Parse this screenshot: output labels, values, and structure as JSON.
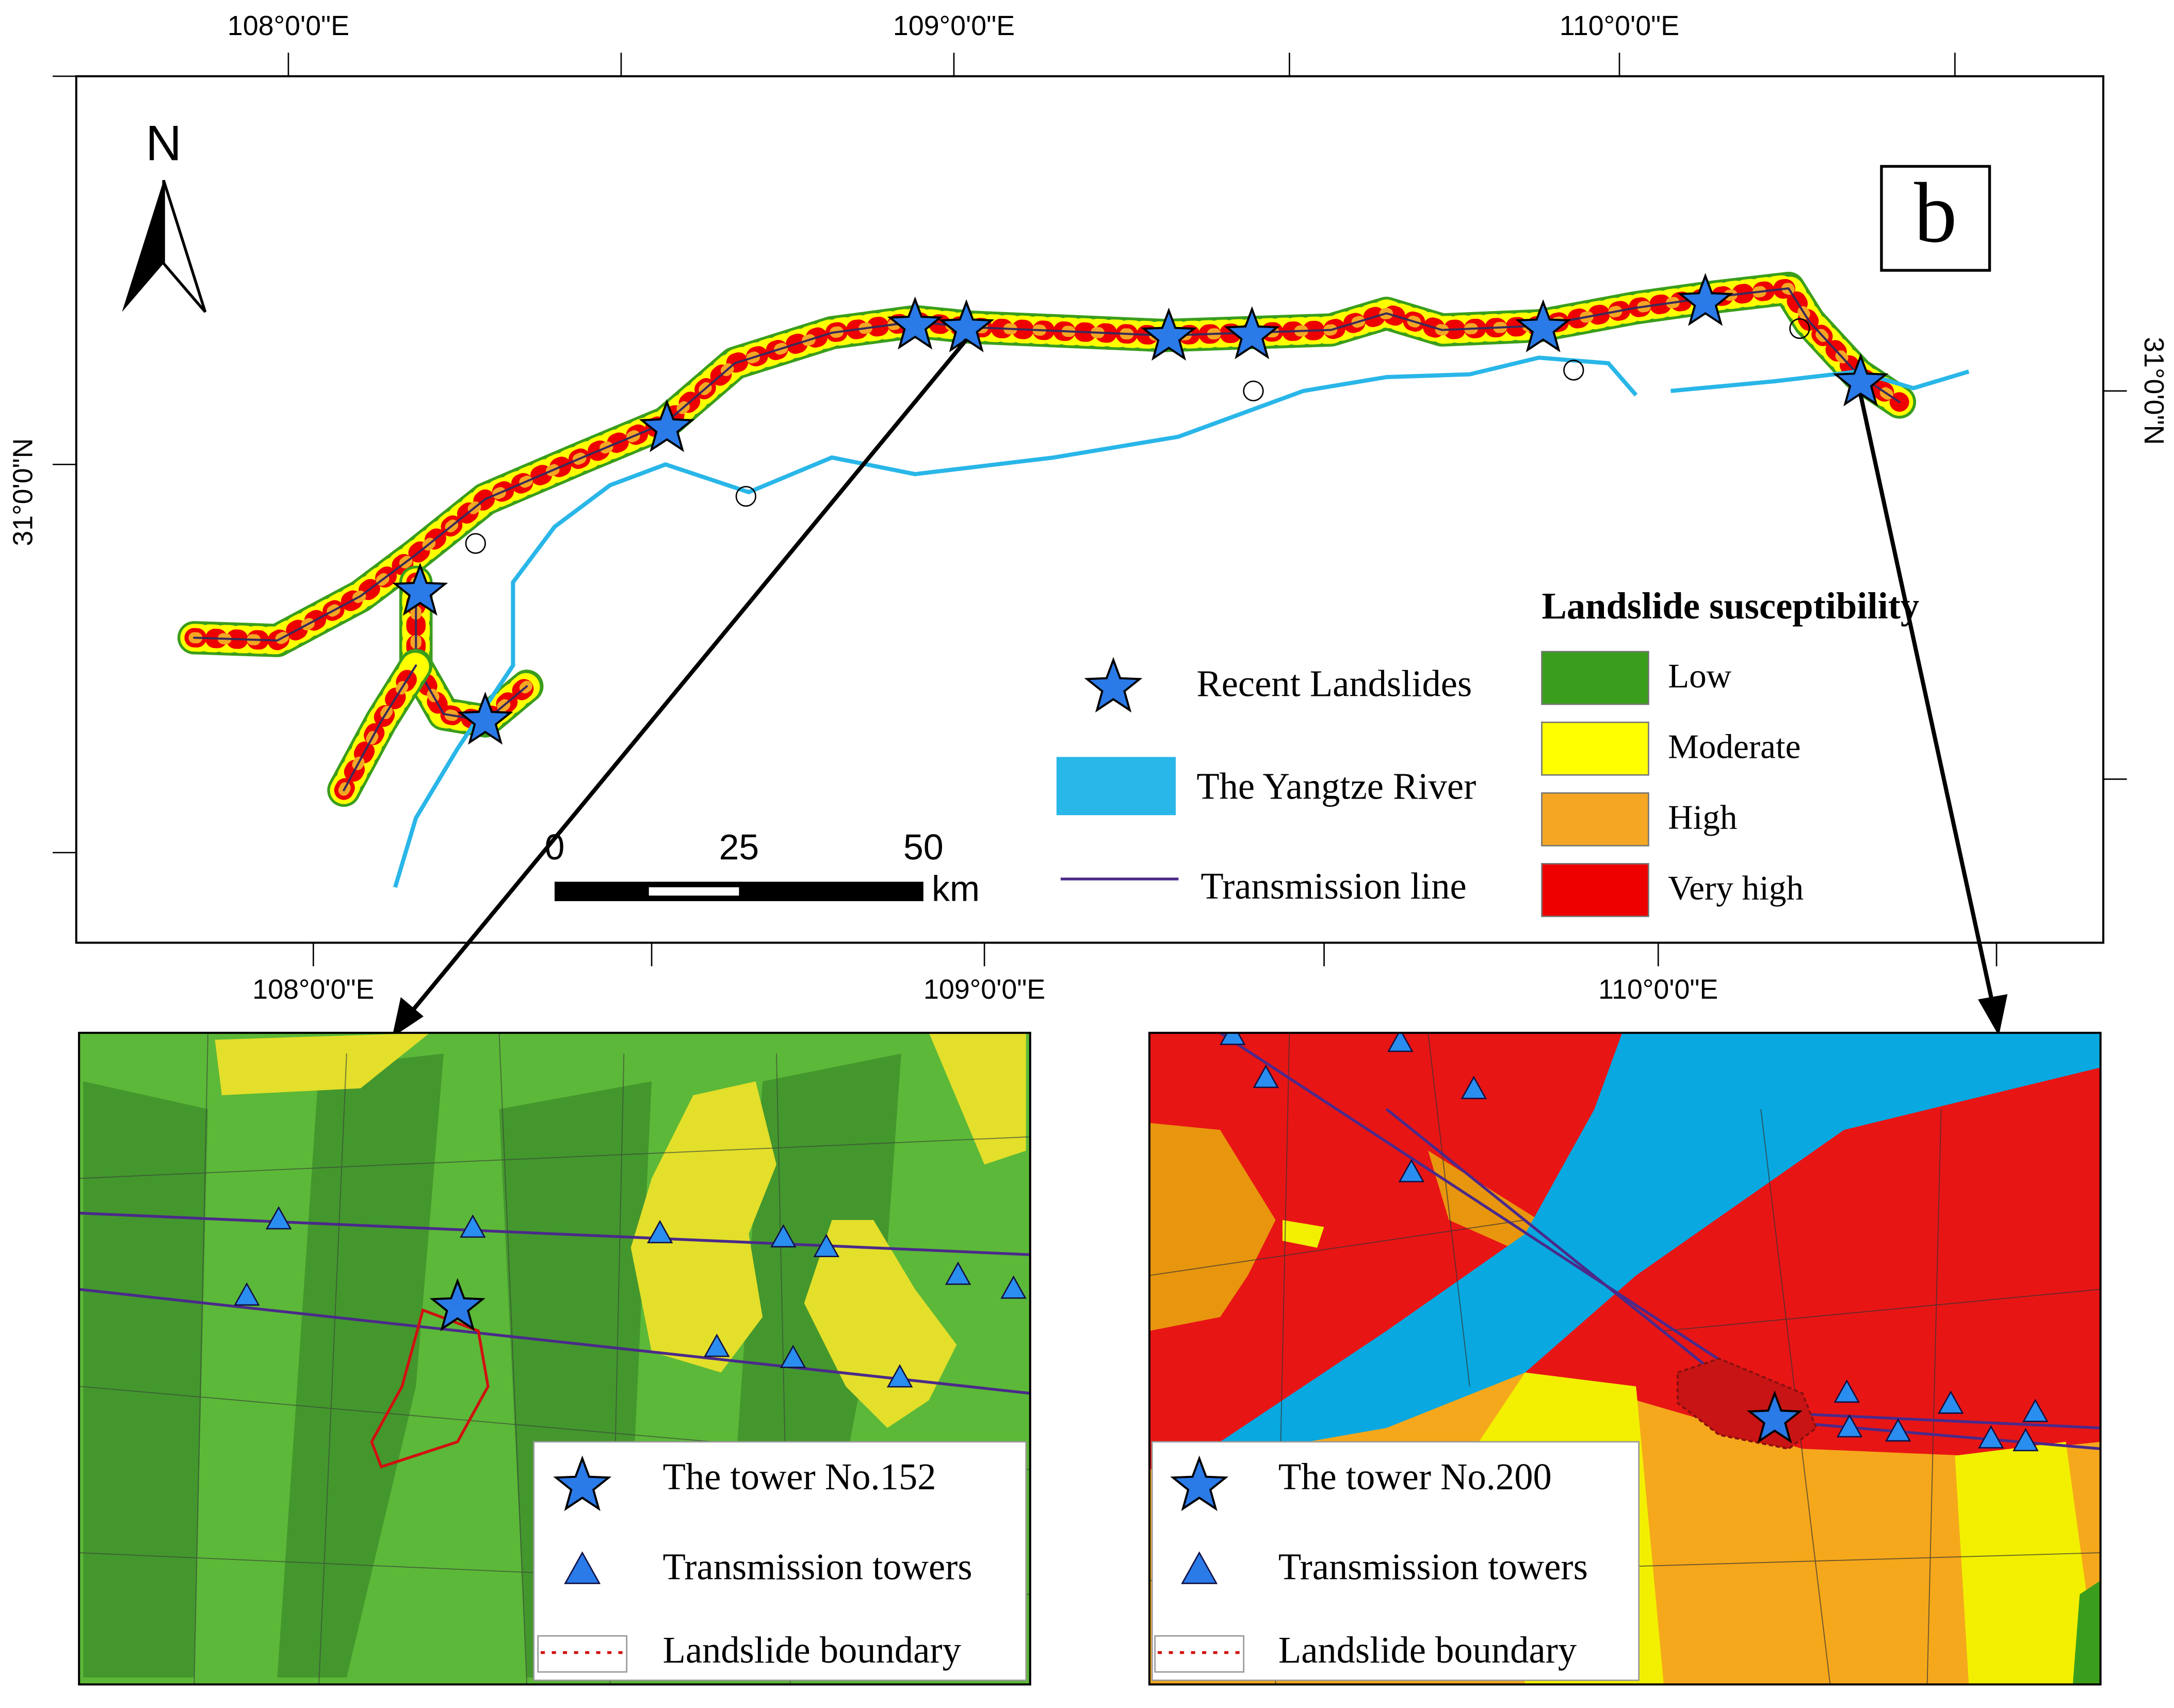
{
  "map": {
    "top_labels": [
      "108°0'0\"E",
      "109°0'0\"E",
      "110°0'0\"E"
    ],
    "bottom_labels": [
      "108°0'0\"E",
      "109°0'0\"E",
      "110°0'0\"E"
    ],
    "right_label": "31°0'0\"N",
    "left_label": "31°0'0\"N",
    "north": "N",
    "panel": "b",
    "scale": {
      "ticks": [
        "0",
        "25",
        "50"
      ],
      "unit": "km"
    },
    "legend": {
      "landslides": "Recent Landslides",
      "river": "The Yangtze River",
      "line": "Transmission line"
    },
    "susceptibility": {
      "title": "Landslide susceptibility",
      "classes": [
        {
          "label": "Low",
          "color": "#3a9e1c"
        },
        {
          "label": "Moderate",
          "color": "#ffff00"
        },
        {
          "label": "High",
          "color": "#f5a623"
        },
        {
          "label": "Very high",
          "color": "#ee0000"
        }
      ]
    }
  },
  "inset_left": {
    "legend": [
      "The tower No.152",
      "Transmission towers",
      "Landslide boundary"
    ]
  },
  "inset_right": {
    "legend": [
      "The tower No.200",
      "Transmission towers",
      "Landslide boundary"
    ]
  }
}
